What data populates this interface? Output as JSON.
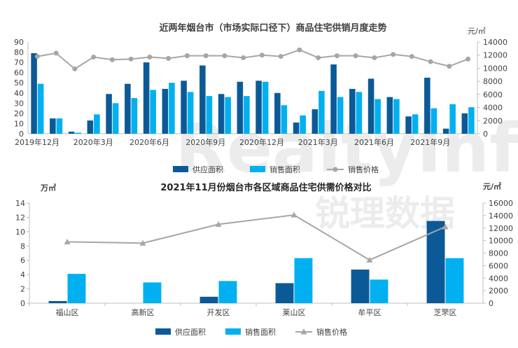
{
  "watermark": {
    "brand": "RealtyInfo",
    "cn": "锐理数据"
  },
  "colors": {
    "supply": "#0b5a97",
    "sales": "#00b0f0",
    "price": "#a6a6a6",
    "axis": "#bfbfbf",
    "text": "#404040"
  },
  "chart_data": [
    {
      "type": "bar",
      "title": "近两年烟台市（市场实际口径下）商品住宅供销月度走势",
      "y2unit": "元/㎡",
      "x_tick_labels": [
        "2019年12月",
        "2020年3月",
        "2020年6月",
        "2020年9月",
        "2020年12月",
        "2021年3月",
        "2021年6月",
        "2021年9月"
      ],
      "x_tick_index": [
        0,
        3,
        6,
        9,
        12,
        15,
        18,
        21
      ],
      "ylim": [
        0,
        90
      ],
      "yticks": [
        "0",
        "10",
        "20",
        "30",
        "40",
        "50",
        "60",
        "70",
        "80",
        "90"
      ],
      "y2lim": [
        0,
        14000
      ],
      "y2ticks": [
        "0",
        "2000",
        "4000",
        "6000",
        "8000",
        "10000",
        "12000",
        "14000"
      ],
      "categories": [
        "2019-12",
        "2020-01",
        "2020-02",
        "2020-03",
        "2020-04",
        "2020-05",
        "2020-06",
        "2020-07",
        "2020-08",
        "2020-09",
        "2020-10",
        "2020-11",
        "2020-12",
        "2021-01",
        "2021-02",
        "2021-03",
        "2021-04",
        "2021-05",
        "2021-06",
        "2021-07",
        "2021-08",
        "2021-09",
        "2021-10",
        "2021-11"
      ],
      "series": [
        {
          "name": "供应面积",
          "values": [
            79,
            15,
            2,
            13,
            39,
            49,
            70,
            44,
            52,
            67,
            39,
            51,
            52,
            40,
            11,
            24,
            68,
            44,
            54,
            36,
            17,
            55,
            5,
            20
          ]
        },
        {
          "name": "销售面积",
          "values": [
            49,
            15,
            1,
            19,
            30,
            35,
            43,
            50,
            41,
            37,
            36,
            37,
            51,
            28,
            18,
            42,
            36,
            41,
            34,
            34,
            19,
            25,
            29,
            26
          ]
        },
        {
          "name": "销售价格",
          "axis": "right",
          "values": [
            11800,
            12300,
            9900,
            11700,
            11300,
            11400,
            11700,
            11500,
            11900,
            11900,
            11900,
            11600,
            12000,
            11800,
            12800,
            11600,
            11900,
            11900,
            11600,
            12100,
            11800,
            11000,
            10300,
            11400
          ]
        }
      ],
      "legend": [
        "供应面积",
        "销售面积",
        "销售价格"
      ]
    },
    {
      "type": "bar",
      "title": "2021年11月份烟台市各区域商品住宅供需价格对比",
      "yunit": "万㎡",
      "y2unit": "元/㎡",
      "ylim": [
        0,
        14
      ],
      "yticks": [
        "0",
        "2",
        "4",
        "6",
        "8",
        "10",
        "12",
        "14"
      ],
      "y2lim": [
        0,
        16000
      ],
      "y2ticks": [
        "0",
        "2000",
        "4000",
        "6000",
        "8000",
        "10000",
        "12000",
        "14000",
        "16000"
      ],
      "categories": [
        "福山区",
        "高新区",
        "开发区",
        "莱山区",
        "牟平区",
        "芝罘区"
      ],
      "series": [
        {
          "name": "供应面积",
          "values": [
            0.3,
            0,
            0.9,
            2.8,
            4.7,
            11.5
          ]
        },
        {
          "name": "销售面积",
          "values": [
            4.1,
            2.9,
            3.1,
            6.3,
            3.3,
            6.3
          ]
        },
        {
          "name": "销售价格",
          "axis": "right",
          "values": [
            9800,
            9600,
            12600,
            14100,
            6900,
            12200
          ]
        }
      ],
      "legend": [
        "供应面积",
        "销售面积",
        "销售价格"
      ]
    }
  ]
}
